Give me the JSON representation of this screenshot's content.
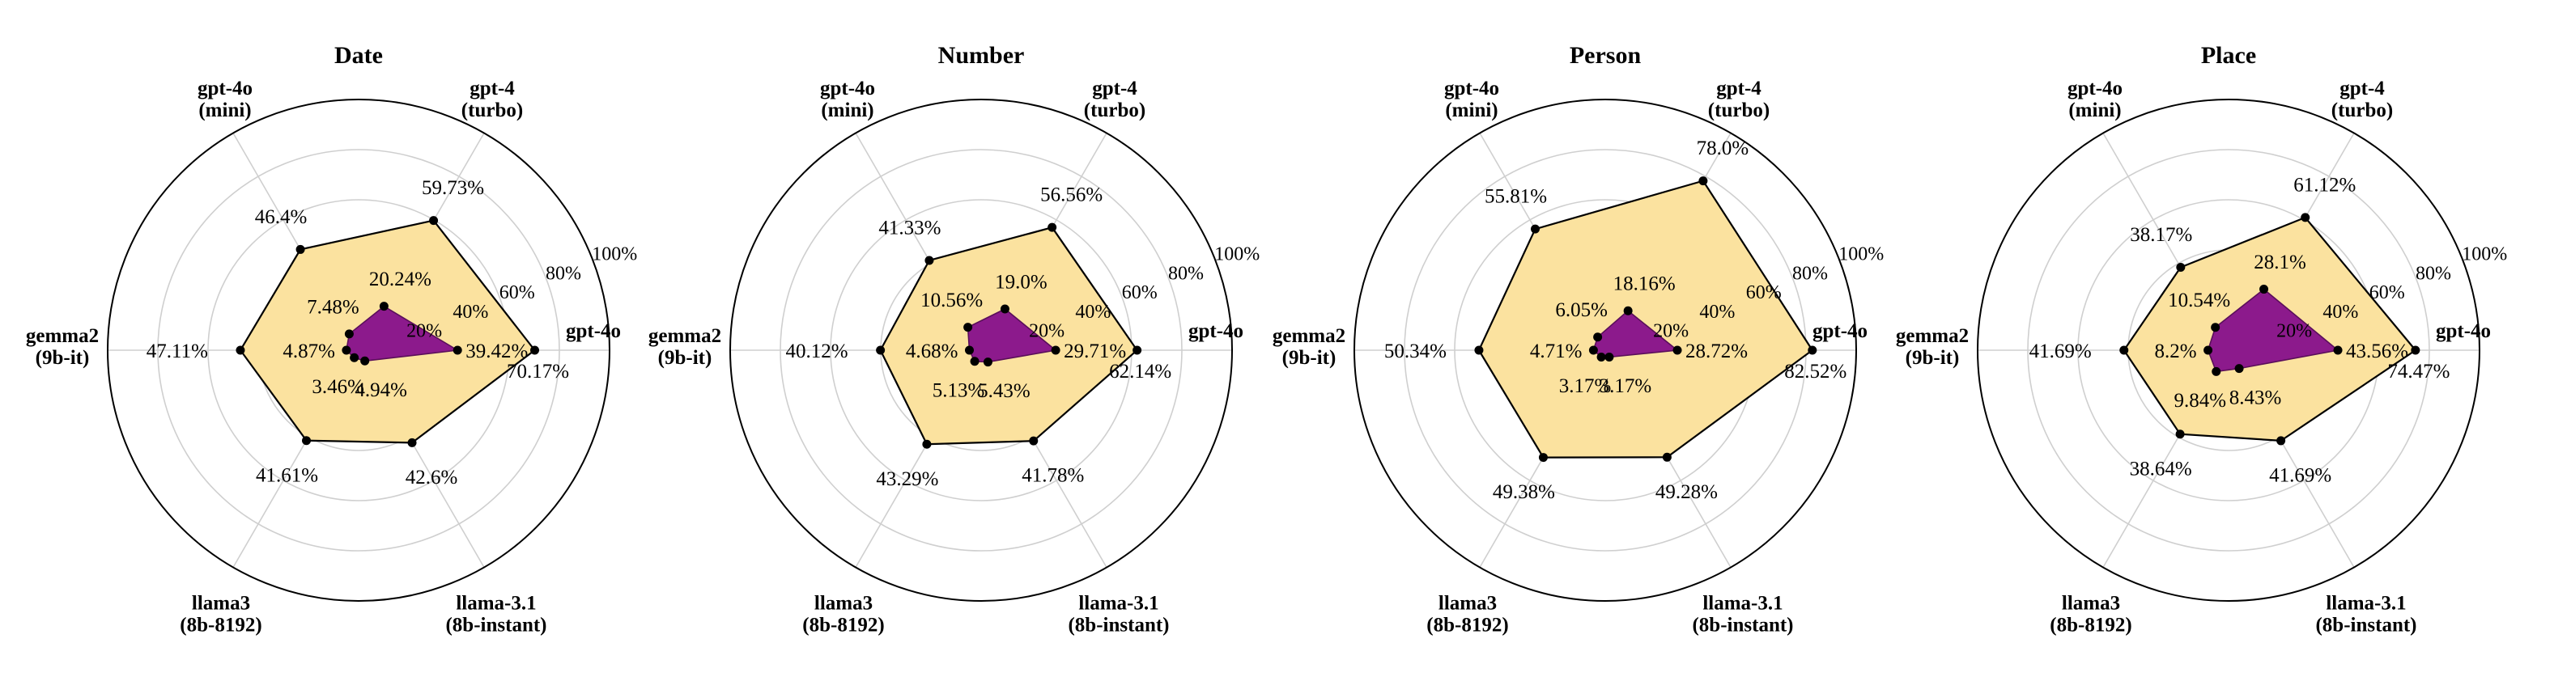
{
  "chart_data": {
    "type": "radar",
    "axes": [
      [
        "gpt-4o",
        ""
      ],
      [
        "gpt-4",
        "(turbo)"
      ],
      [
        "gpt-4o",
        "(mini)"
      ],
      [
        "gemma2",
        "(9b-it)"
      ],
      [
        "llama3",
        "(8b-8192)"
      ],
      [
        "llama-3.1",
        "(8b-instant)"
      ]
    ],
    "rlim": [
      0,
      100
    ],
    "ticks": [
      "20%",
      "40%",
      "60%",
      "80%",
      "100%"
    ],
    "tick_values": [
      20,
      40,
      60,
      80,
      100
    ],
    "grid": true,
    "colors": {
      "outer_fill": "#fbe29f",
      "outer_stroke": "#000000",
      "inner_fill": "#8c1a8c",
      "inner_stroke": "#5a0f5a",
      "point": "#000000"
    },
    "panels": [
      {
        "title": "Date",
        "series": [
          {
            "values": [
              70.17,
              59.73,
              46.4,
              47.11,
              41.61,
              42.6
            ],
            "labels": [
              "70.17%",
              "59.73%",
              "46.4%",
              "47.11%",
              "41.61%",
              "42.6%"
            ]
          },
          {
            "values": [
              39.42,
              20.24,
              7.48,
              4.87,
              3.46,
              4.94
            ],
            "labels": [
              "39.42%",
              "20.24%",
              "7.48%",
              "4.87%",
              "3.46%",
              "4.94%"
            ]
          }
        ]
      },
      {
        "title": "Number",
        "series": [
          {
            "values": [
              62.14,
              56.56,
              41.33,
              40.12,
              43.29,
              41.78
            ],
            "labels": [
              "62.14%",
              "56.56%",
              "41.33%",
              "40.12%",
              "43.29%",
              "41.78%"
            ]
          },
          {
            "values": [
              29.71,
              19.0,
              10.56,
              4.68,
              5.13,
              5.43
            ],
            "labels": [
              "29.71%",
              "19.0%",
              "10.56%",
              "4.68%",
              "5.13%",
              "5.43%"
            ]
          }
        ]
      },
      {
        "title": "Person",
        "series": [
          {
            "values": [
              82.52,
              78.0,
              55.81,
              50.34,
              49.38,
              49.28
            ],
            "labels": [
              "82.52%",
              "78.0%",
              "55.81%",
              "50.34%",
              "49.38%",
              "49.28%"
            ]
          },
          {
            "values": [
              28.72,
              18.16,
              6.05,
              4.71,
              3.17,
              3.17
            ],
            "labels": [
              "28.72%",
              "18.16%",
              "6.05%",
              "4.71%",
              "3.17%",
              "3.17%"
            ]
          }
        ]
      },
      {
        "title": "Place",
        "series": [
          {
            "values": [
              74.47,
              61.12,
              38.17,
              41.69,
              38.64,
              41.69
            ],
            "labels": [
              "74.47%",
              "61.12%",
              "38.17%",
              "41.69%",
              "38.64%",
              "41.69%"
            ]
          },
          {
            "values": [
              43.56,
              28.1,
              10.54,
              8.2,
              9.84,
              8.43
            ],
            "labels": [
              "43.56%",
              "28.1%",
              "10.54%",
              "8.2%",
              "9.84%",
              "8.43%"
            ]
          }
        ]
      }
    ]
  }
}
